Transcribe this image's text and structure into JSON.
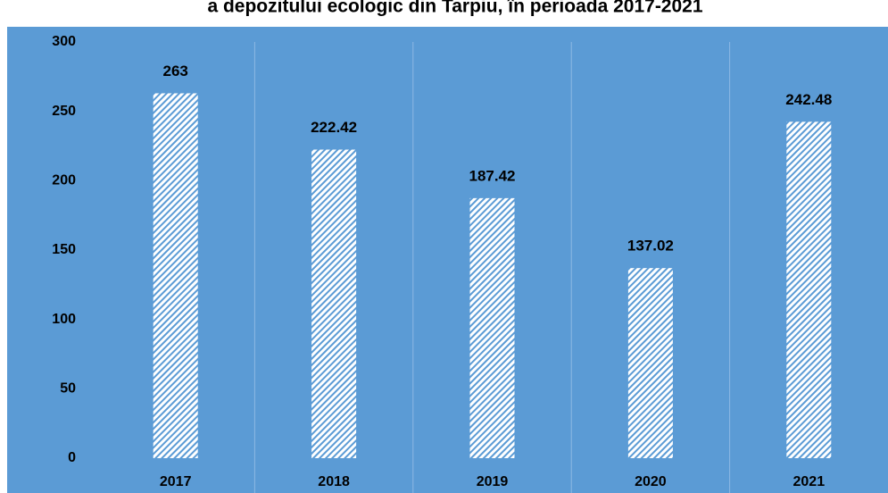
{
  "chart_data": {
    "type": "bar",
    "title": "a depozitului ecologic din Tarpiu, în perioada 2017-2021",
    "categories": [
      "2017",
      "2018",
      "2019",
      "2020",
      "2021"
    ],
    "values": [
      263,
      222.42,
      187.42,
      137.02,
      242.48
    ],
    "color": "#5b9bd5",
    "ylim": [
      0,
      300
    ],
    "yticks": [
      0,
      50,
      100,
      150,
      200,
      250,
      300
    ],
    "grid": true
  }
}
